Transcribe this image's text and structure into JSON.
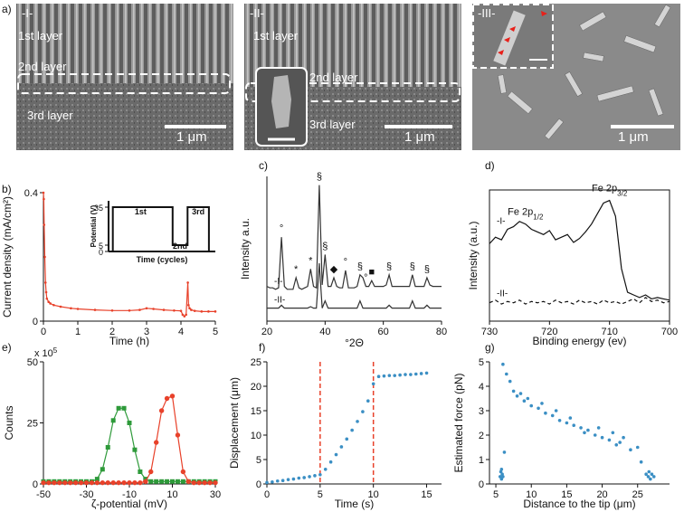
{
  "micrographs": {
    "panel": "a)",
    "images": [
      {
        "label": "-I-",
        "layers": [
          "1st layer",
          "2nd layer",
          "3rd layer"
        ],
        "scale": "1 μm"
      },
      {
        "label": "-II-",
        "layers": [
          "1st layer",
          "2nd layer",
          "3rd layer"
        ],
        "scale": "1 μm"
      },
      {
        "label": "-III-",
        "scale": "1 μm"
      }
    ]
  },
  "chart_data": [
    {
      "type": "line",
      "panel": "b)",
      "x_label": "Time (h)",
      "y_label": "Current density (mA/cm²)",
      "xlim": [
        0,
        5
      ],
      "ylim": [
        0,
        0.4
      ],
      "xticks": [
        0,
        1,
        2,
        3,
        4,
        5
      ],
      "yticks": [
        0,
        0.4
      ],
      "x": [
        0,
        0.01,
        0.02,
        0.04,
        0.06,
        0.08,
        0.1,
        0.15,
        0.2,
        0.3,
        0.5,
        0.8,
        1,
        1.5,
        2,
        2.5,
        2.8,
        3,
        3.2,
        3.5,
        3.8,
        4.0,
        4.05,
        4.1,
        4.15,
        4.2,
        4.22,
        4.25,
        4.3,
        4.4,
        4.6,
        4.8,
        5
      ],
      "series": [
        {
          "color": "#e8412a",
          "marker": "dot",
          "values": [
            0.4,
            0.38,
            0.3,
            0.2,
            0.12,
            0.09,
            0.07,
            0.06,
            0.055,
            0.05,
            0.045,
            0.04,
            0.038,
            0.035,
            0.033,
            0.033,
            0.035,
            0.04,
            0.038,
            0.035,
            0.033,
            0.032,
            0.02,
            0.015,
            0.02,
            0.12,
            0.05,
            0.04,
            0.035,
            0.032,
            0.03,
            0.03,
            0.03
          ]
        }
      ]
    },
    {
      "type": "line",
      "x_label": "Time (cycles)",
      "y_label": "Potential (V)",
      "xlim": [
        0,
        1
      ],
      "ylim": [
        0,
        40
      ],
      "yticks": [
        0,
        5,
        35
      ],
      "x": [
        0,
        0.04,
        0.04,
        0.6,
        0.6,
        0.74,
        0.74,
        0.94,
        0.94,
        1
      ],
      "series": [
        {
          "color": "#111111",
          "values": [
            0,
            0,
            35,
            35,
            5,
            5,
            35,
            35,
            0,
            0
          ]
        }
      ],
      "annotations": [
        {
          "x": 0.3,
          "y": 27,
          "text": "1st"
        },
        {
          "x": 0.67,
          "y": 0,
          "text": "2nd"
        },
        {
          "x": 0.84,
          "y": 27,
          "text": "3rd"
        }
      ]
    },
    {
      "type": "line",
      "panel": "c)",
      "x_label": "°2Θ",
      "y_label": "Intensity a.u.",
      "xlim": [
        20,
        80
      ],
      "ylim": [
        0,
        100
      ],
      "xticks": [
        20,
        40,
        60,
        80
      ],
      "x": [
        20,
        21,
        22,
        23,
        24,
        25,
        26,
        27,
        28,
        29,
        30,
        31,
        32,
        33,
        34,
        35,
        36,
        37,
        38,
        39,
        40,
        41,
        42,
        43,
        44,
        45,
        46,
        47,
        48,
        49,
        50,
        51,
        52,
        53,
        54,
        55,
        56,
        57,
        58,
        59,
        60,
        61,
        62,
        63,
        64,
        65,
        66,
        67,
        68,
        69,
        70,
        71,
        72,
        73,
        74,
        75,
        76,
        77,
        78,
        79,
        80
      ],
      "series": [
        {
          "name": "-I-",
          "color": "#333333",
          "values": [
            24,
            23,
            23,
            22,
            23,
            58,
            24,
            22,
            22,
            22,
            30,
            23,
            22,
            23,
            24,
            36,
            24,
            23,
            94,
            25,
            46,
            24,
            24,
            30,
            24,
            23,
            23,
            35,
            23,
            23,
            23,
            24,
            32,
            30,
            24,
            24,
            28,
            24,
            24,
            24,
            24,
            25,
            32,
            24,
            24,
            24,
            24,
            24,
            24,
            24,
            32,
            24,
            24,
            24,
            24,
            30,
            25,
            24,
            24,
            24,
            24
          ]
        },
        {
          "name": "-II-",
          "color": "#333333",
          "values": [
            9,
            9,
            9,
            9,
            9,
            11,
            9,
            9,
            9,
            9,
            9,
            9,
            9,
            9,
            9,
            10,
            9,
            9,
            40,
            9,
            14,
            9,
            9,
            9,
            9,
            9,
            9,
            9,
            9,
            9,
            9,
            9,
            14,
            9,
            9,
            9,
            9,
            9,
            9,
            9,
            9,
            9,
            11,
            9,
            9,
            9,
            9,
            9,
            9,
            9,
            14,
            9,
            9,
            9,
            9,
            11,
            9,
            9,
            9,
            9,
            9
          ]
        }
      ],
      "annotations": [
        {
          "x": 25,
          "text": "°"
        },
        {
          "x": 30,
          "text": "*"
        },
        {
          "x": 35,
          "text": "*"
        },
        {
          "x": 38,
          "text": "§"
        },
        {
          "x": 40,
          "text": "§"
        },
        {
          "x": 43,
          "text": "◆"
        },
        {
          "x": 47,
          "text": "°"
        },
        {
          "x": 52,
          "text": "§"
        },
        {
          "x": 54,
          "text": "°"
        },
        {
          "x": 56,
          "text": "■"
        },
        {
          "x": 62,
          "text": "§"
        },
        {
          "x": 70,
          "text": "§"
        },
        {
          "x": 75,
          "text": "§"
        }
      ]
    },
    {
      "type": "line",
      "panel": "d)",
      "x_label": "Binding energy (ev)",
      "y_label": "Intensity (a.u.)",
      "frame": true,
      "xlim": [
        730,
        700
      ],
      "ylim": [
        0,
        100
      ],
      "xticks": [
        730,
        720,
        710,
        700
      ],
      "x": [
        730,
        729,
        728,
        727,
        726,
        725,
        724,
        723,
        722,
        721,
        720,
        719,
        718,
        717,
        716,
        715,
        714,
        713,
        712,
        711,
        710,
        709,
        708,
        707,
        706,
        705,
        704,
        703,
        702,
        701,
        700
      ],
      "series": [
        {
          "name": "-I-",
          "color": "#111111",
          "values": [
            59,
            64,
            62,
            70,
            72,
            76,
            74,
            70,
            68,
            66,
            69,
            62,
            64,
            66,
            60,
            63,
            68,
            74,
            82,
            90,
            92,
            80,
            40,
            22,
            20,
            18,
            20,
            17,
            18,
            17,
            16
          ]
        },
        {
          "name": "-II-",
          "color": "#111111",
          "dash": true,
          "values": [
            14,
            16,
            13,
            15,
            14,
            16,
            13,
            15,
            14,
            15,
            13,
            16,
            14,
            15,
            13,
            16,
            14,
            15,
            13,
            16,
            14,
            15,
            13,
            15,
            17,
            14,
            18,
            15,
            16,
            14,
            15
          ]
        }
      ],
      "annotations": [
        {
          "x": 724,
          "text": "Fe 2p",
          "sub": "1/2"
        },
        {
          "x": 710,
          "text": "Fe 2p",
          "sub": "3/2"
        }
      ]
    },
    {
      "type": "line",
      "panel": "e)",
      "x_label": "ζ-potential (mV)",
      "y_label": "Counts",
      "multiplier": {
        "text": "x 10",
        "sup": "5"
      },
      "xlim": [
        -50,
        30
      ],
      "ylim": [
        0,
        50
      ],
      "xticks": [
        -50,
        -30,
        -10,
        10,
        30
      ],
      "yticks": [
        0,
        25,
        50
      ],
      "x": [
        -50,
        -47.5,
        -45,
        -42.5,
        -40,
        -37.5,
        -35,
        -32.5,
        -30,
        -27.5,
        -25,
        -22.5,
        -20,
        -17.5,
        -15,
        -12.5,
        -10,
        -7.5,
        -5,
        -2.5,
        0,
        2.5,
        5,
        7.5,
        10,
        12.5,
        15,
        17.5,
        20,
        22.5,
        25,
        27.5,
        30
      ],
      "series": [
        {
          "color": "#2e9a3a",
          "marker": "square",
          "values": [
            1,
            1,
            1,
            1,
            1,
            1,
            1,
            1,
            1,
            1,
            2,
            6,
            15,
            26,
            31,
            31,
            25,
            14,
            5,
            2,
            1,
            1,
            1,
            1,
            1,
            1,
            1,
            1,
            1,
            1,
            1,
            1,
            1
          ]
        },
        {
          "color": "#e8412a",
          "marker": "circle",
          "values": [
            0.5,
            0.5,
            0.5,
            0.5,
            0.5,
            0.5,
            0.5,
            0.5,
            0.5,
            0.5,
            0.5,
            0.5,
            0.5,
            0.5,
            0.5,
            0.5,
            0.5,
            0.5,
            0.5,
            1,
            5,
            17,
            30,
            35,
            36,
            20,
            5,
            1,
            0.5,
            0.5,
            0.5,
            0.5,
            0.5
          ]
        }
      ]
    },
    {
      "type": "scatter",
      "panel": "f)",
      "x_label": "Time (s)",
      "y_label": "Displacement (μm)",
      "xlim": [
        0,
        16.4
      ],
      "ylim": [
        0,
        25
      ],
      "xticks": [
        0,
        5,
        10,
        15
      ],
      "yticks": [
        0,
        5,
        10,
        15,
        20,
        25
      ],
      "vlines": [
        5,
        10
      ],
      "vline_color": "#e8412a",
      "x": [
        0,
        0.5,
        1,
        1.5,
        2,
        2.5,
        3,
        3.5,
        4,
        4.5,
        5,
        5.5,
        6,
        6.5,
        7,
        7.5,
        8,
        8.5,
        9,
        9.5,
        10,
        10.5,
        11,
        11.5,
        12,
        12.5,
        13,
        13.5,
        14,
        14.5,
        15
      ],
      "color": "#3b8fc4",
      "values": [
        0.3,
        0.4,
        0.6,
        0.7,
        0.9,
        1.0,
        1.2,
        1.3,
        1.5,
        1.7,
        1.9,
        3.0,
        4.5,
        6.0,
        7.6,
        9.2,
        11,
        12.8,
        14.8,
        17,
        20.5,
        22,
        22.1,
        22.2,
        22.2,
        22.3,
        22.4,
        22.4,
        22.5,
        22.6,
        22.7
      ]
    },
    {
      "type": "scatter",
      "panel": "g)",
      "x_label": "Distance to the tip (μm)",
      "y_label": "Estimated force (pN)",
      "xlim": [
        4.1,
        29.5
      ],
      "ylim": [
        0,
        5
      ],
      "xticks": [
        5,
        10,
        15,
        20,
        25
      ],
      "yticks": [
        0,
        1,
        2,
        3,
        4,
        5
      ],
      "x": [
        5.6,
        5.7,
        5.8,
        5.9,
        6.0,
        5.8,
        6.2,
        6,
        6.5,
        7,
        7.5,
        8,
        8.5,
        9,
        9.5,
        10,
        11,
        11.5,
        12,
        13,
        13.5,
        14,
        15,
        15.5,
        16,
        17,
        17.5,
        18,
        19,
        19.5,
        20,
        21,
        21.5,
        22,
        22.5,
        23,
        24,
        25,
        25.5,
        26.2,
        26.5,
        26.8,
        27,
        27.3,
        26.6
      ],
      "color": "#3b8fc4",
      "values": [
        0.3,
        0.5,
        0.2,
        0.4,
        0.3,
        0.6,
        1.3,
        4.9,
        4.5,
        4.2,
        3.8,
        3.6,
        3.7,
        3.4,
        3.5,
        3.2,
        3.1,
        3.3,
        2.9,
        2.8,
        3.0,
        2.6,
        2.5,
        2.7,
        2.4,
        2.3,
        2.1,
        2.2,
        2.0,
        2.3,
        1.9,
        1.8,
        2.1,
        1.6,
        1.7,
        1.9,
        1.4,
        1.5,
        0.9,
        0.4,
        0.3,
        0.2,
        0.4,
        0.3,
        0.5
      ]
    }
  ]
}
